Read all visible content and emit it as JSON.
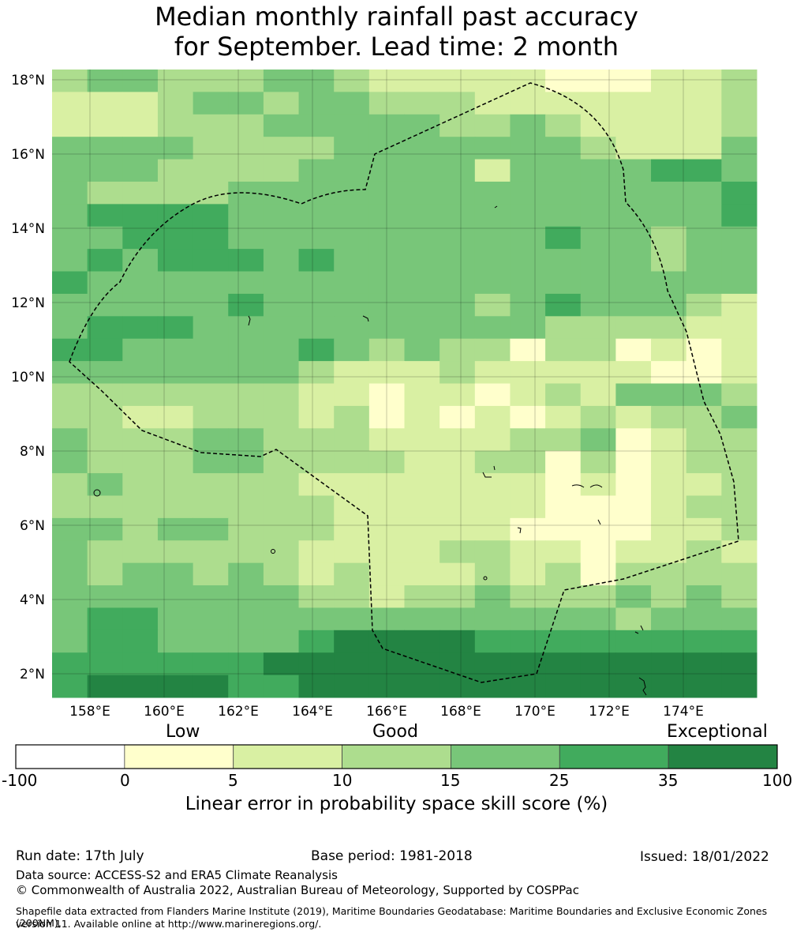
{
  "title_line1": "Median monthly rainfall past accuracy",
  "title_line2": "for September. Lead time: 2 month",
  "map": {
    "lat_labels": [
      "18°N",
      "16°N",
      "14°N",
      "12°N",
      "10°N",
      "8°N",
      "6°N",
      "4°N",
      "2°N"
    ],
    "lon_labels": [
      "158°E",
      "160°E",
      "162°E",
      "164°E",
      "166°E",
      "168°E",
      "170°E",
      "172°E",
      "174°E"
    ],
    "colors": [
      "#ffffff",
      "#ffffcc",
      "#d9f0a3",
      "#addd8e",
      "#78c679",
      "#41ab5d",
      "#238443"
    ],
    "rows": [
      "34433344322222111223",
      "22234434433322222223",
      "22233344444334322223",
      "44443333444444432224",
      "44433334444424444554",
      "43333444444444444445",
      "45555444444444444445",
      "44555444444444544344",
      "45455545444444444344",
      "54444444444444444444",
      "44444544444434544432",
      "45554444444444333322",
      "55444445434331331212",
      "44444443222322222112",
      "33333332212212324443",
      "33223332312121232334",
      "43334433322223341233",
      "43334433332233131233",
      "34333332222222121223",
      "33333333222222111233",
      "44344333222221111223",
      "43333332222332212232",
      "43443432322232313333",
      "44444443323343334343",
      "45544444444444443444",
      "45544445666655555555",
      "55555566666666666666",
      "56666556666666666666"
    ]
  },
  "colorbar": {
    "words": [
      "Low",
      "Good",
      "Exceptional"
    ],
    "ticks": [
      "-100",
      "0",
      "5",
      "10",
      "15",
      "25",
      "35",
      "100"
    ],
    "label": "Linear error in probability space skill score (%)"
  },
  "footer": {
    "run_date": "Run date: 17th July",
    "base_period": "Base period: 1981-2018",
    "issued": "Issued: 18/01/2022",
    "data_source": "Data source: ACCESS-S2 and ERA5 Climate Reanalysis",
    "copyright": "© Commonwealth of Australia 2022, Australian Bureau of Meteorology, Supported by COSPPac",
    "shapefile_line1": "Shapefile data extracted from Flanders Marine Institute (2019), Maritime Boundaries Geodatabase: Maritime Boundaries and Exclusive Economic Zones (200NM),",
    "shapefile_line2": "version 11. Available online at http://www.marineregions.org/."
  }
}
